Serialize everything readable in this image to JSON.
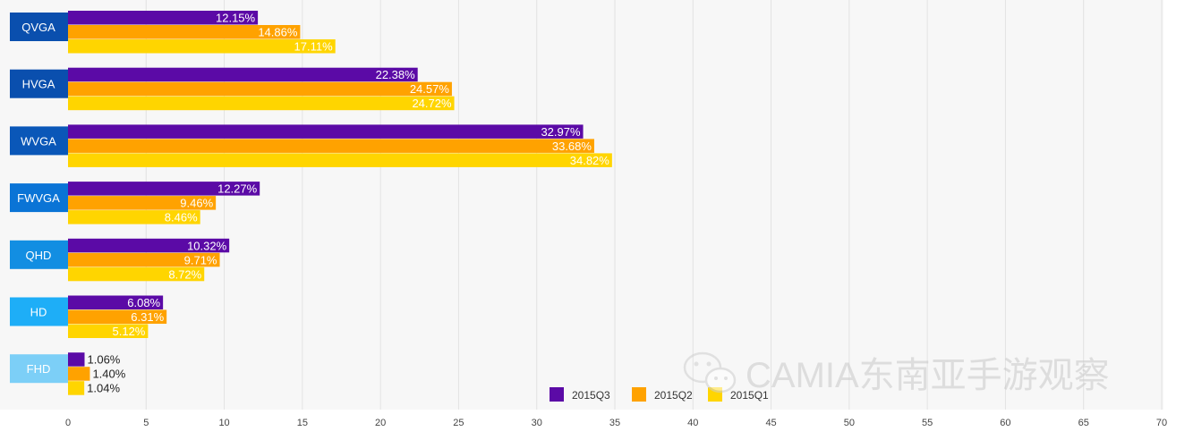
{
  "chart_data": {
    "type": "bar",
    "orientation": "horizontal",
    "categories": [
      "QVGA",
      "HVGA",
      "WVGA",
      "FWVGA",
      "QHD",
      "HD",
      "FHD"
    ],
    "series": [
      {
        "name": "2015Q3",
        "values": [
          12.15,
          22.38,
          32.97,
          12.27,
          10.32,
          6.08,
          1.06
        ],
        "labels": [
          "12.15%",
          "22.38%",
          "32.97%",
          "12.27%",
          "10.32%",
          "6.08%",
          "1.06%"
        ]
      },
      {
        "name": "2015Q2",
        "values": [
          14.86,
          24.57,
          33.68,
          9.46,
          9.71,
          6.31,
          1.4
        ],
        "labels": [
          "14.86%",
          "24.57%",
          "33.68%",
          "9.46%",
          "9.71%",
          "6.31%",
          "1.40%"
        ]
      },
      {
        "name": "2015Q1",
        "values": [
          17.11,
          24.72,
          34.82,
          8.46,
          8.72,
          5.12,
          1.04
        ],
        "labels": [
          "17.11%",
          "24.72%",
          "34.82%",
          "8.46%",
          "8.72%",
          "5.12%",
          "1.04%"
        ]
      }
    ],
    "xlim": [
      0,
      70
    ],
    "xticks": [
      "0",
      "5",
      "10",
      "15",
      "20",
      "25",
      "30",
      "35",
      "40",
      "45",
      "50",
      "55",
      "60",
      "65",
      "70"
    ],
    "grid": true,
    "legend_position": "bottom-right",
    "colors": {
      "series": [
        "#5b0aa6",
        "#ffa200",
        "#ffd500"
      ],
      "categories": [
        "#0a4fae",
        "#0a4fae",
        "#0a57b8",
        "#0a74d6",
        "#128ee2",
        "#1eaef7",
        "#7ccff7"
      ],
      "background": "#f7f7f7",
      "grid": "#e2e2e2"
    }
  },
  "watermark": {
    "text": "CAMIA东南亚手游观察"
  }
}
